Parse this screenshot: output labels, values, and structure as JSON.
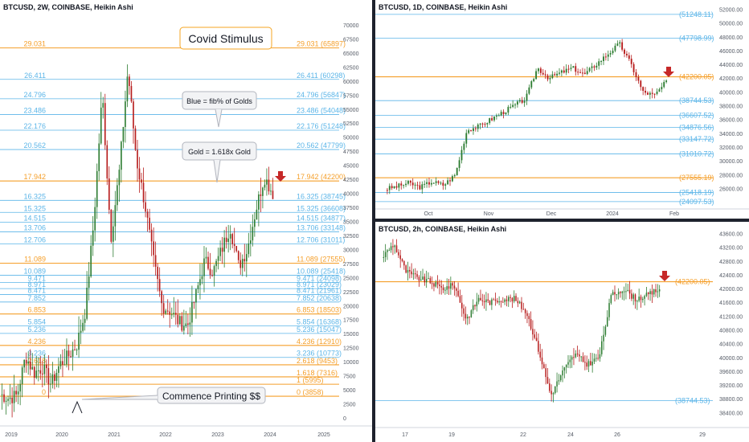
{
  "colors": {
    "gold": "#f59f2a",
    "blue": "#5bb5e8",
    "up": "#2e7d32",
    "down": "#b71c1c",
    "axis_text": "#555b66",
    "arrow": "#c62828",
    "callout_border": "#f5a623"
  },
  "chart_data": [
    {
      "type": "candlestick",
      "title": "BTCUSD, 2W, COINBASE, Heikin Ashi",
      "x_ticks": [
        "2019",
        "2020",
        "2021",
        "2022",
        "2023",
        "2024",
        "2025"
      ],
      "y_ticks": [
        "70000",
        "67500",
        "65000",
        "62500",
        "60000",
        "57500",
        "55000",
        "52500",
        "50000",
        "47500",
        "45000",
        "42500",
        "40000",
        "37500",
        "35000",
        "32500",
        "30000",
        "27500",
        "25000",
        "22500",
        "20000",
        "17500",
        "15000",
        "12500",
        "10000",
        "7500",
        "5000",
        "2500",
        "0"
      ],
      "ylim": [
        0,
        72000
      ],
      "levels": [
        {
          "left": "29.031",
          "right": "29.031 (65897)",
          "value": 65897,
          "color": "gold"
        },
        {
          "left": "26.411",
          "right": "26.411 (60298)",
          "value": 60298,
          "color": "blue"
        },
        {
          "left": "24.796",
          "right": "24.796 (56847)",
          "value": 56847,
          "color": "blue"
        },
        {
          "left": "23.486",
          "right": "23.486 (54048)",
          "value": 54048,
          "color": "blue"
        },
        {
          "left": "22.176",
          "right": "22.176 (51248)",
          "value": 51248,
          "color": "blue"
        },
        {
          "left": "20.562",
          "right": "20.562 (47799)",
          "value": 47799,
          "color": "blue"
        },
        {
          "left": "17.942",
          "right": "17.942 (42200)",
          "value": 42200,
          "color": "gold"
        },
        {
          "left": "16.325",
          "right": "16.325 (38745)",
          "value": 38745,
          "color": "blue"
        },
        {
          "left": "15.325",
          "right": "15.325 (36608)",
          "value": 36608,
          "color": "blue"
        },
        {
          "left": "14.515",
          "right": "14.515 (34877)",
          "value": 34877,
          "color": "blue"
        },
        {
          "left": "13.706",
          "right": "13.706 (33148)",
          "value": 33148,
          "color": "blue"
        },
        {
          "left": "12.706",
          "right": "12.706 (31011)",
          "value": 31011,
          "color": "blue"
        },
        {
          "left": "11.089",
          "right": "11.089 (27555)",
          "value": 27555,
          "color": "gold"
        },
        {
          "left": "10.089",
          "right": "10.089 (25418)",
          "value": 25418,
          "color": "blue"
        },
        {
          "left": "9.471",
          "right": "9.471 (24098)",
          "value": 24098,
          "color": "blue"
        },
        {
          "left": "8.971",
          "right": "8.971 (23029)",
          "value": 23029,
          "color": "blue"
        },
        {
          "left": "8.471",
          "right": "8.471 (21961)",
          "value": 21961,
          "color": "blue"
        },
        {
          "left": "7.852",
          "right": "7.852 (20638)",
          "value": 20638,
          "color": "blue"
        },
        {
          "left": "6.853",
          "right": "6.853 (18503)",
          "value": 18503,
          "color": "gold"
        },
        {
          "left": "5.854",
          "right": "5.854 (16368)",
          "value": 16368,
          "color": "blue"
        },
        {
          "left": "5.236",
          "right": "5.236 (15047)",
          "value": 15047,
          "color": "blue"
        },
        {
          "left": "4.236",
          "right": "4.236 (12910)",
          "value": 12910,
          "color": "gold"
        },
        {
          "left": "3.236",
          "right": "3.236 (10773)",
          "value": 10773,
          "color": "blue"
        },
        {
          "left": "2.618",
          "right": "2.618 (9453)",
          "value": 9453,
          "color": "gold"
        },
        {
          "left": "",
          "right": "1.618 (7316)",
          "value": 7316,
          "color": "gold"
        },
        {
          "left": "",
          "right": "1 (5995)",
          "value": 5995,
          "color": "gold"
        },
        {
          "left": "0",
          "right": "0 (3858)",
          "value": 3858,
          "color": "gold"
        }
      ],
      "annotations": {
        "covid": "Covid Stimulus",
        "blue_note": "Blue = fib% of Golds",
        "gold_note": "Gold = 1.618x Gold",
        "printing": "Commence Printing $$"
      }
    },
    {
      "type": "candlestick",
      "title": "BTCUSD, 1D, COINBASE, Heikin Ashi",
      "x_ticks": [
        "Oct",
        "Nov",
        "Dec",
        "2024",
        "Feb"
      ],
      "y_ticks": [
        "52000.00",
        "50000.00",
        "48000.00",
        "46000.00",
        "44000.00",
        "42000.00",
        "40000.00",
        "38000.00",
        "36000.00",
        "34000.00",
        "32000.00",
        "30000.00",
        "28000.00",
        "26000.00"
      ],
      "ylim": [
        23500,
        52400
      ],
      "levels": [
        {
          "label": "(51248.11)",
          "value": 51248.11,
          "color": "blue"
        },
        {
          "label": "(47798.99)",
          "value": 47798.99,
          "color": "blue"
        },
        {
          "label": "(42200.05)",
          "value": 42200.05,
          "color": "gold"
        },
        {
          "label": "(38744.53)",
          "value": 38744.53,
          "color": "blue"
        },
        {
          "label": "(36607.52)",
          "value": 36607.52,
          "color": "blue"
        },
        {
          "label": "(34876.56)",
          "value": 34876.56,
          "color": "blue"
        },
        {
          "label": "(33147.72)",
          "value": 33147.72,
          "color": "blue"
        },
        {
          "label": "(31010.72)",
          "value": 31010.72,
          "color": "blue"
        },
        {
          "label": "(27555.19)",
          "value": 27555.19,
          "color": "gold"
        },
        {
          "label": "(25418.19)",
          "value": 25418.19,
          "color": "blue"
        },
        {
          "label": "(24097.53)",
          "value": 24097.53,
          "color": "blue"
        }
      ]
    },
    {
      "type": "candlestick",
      "title": "BTCUSD, 2h, COINBASE, Heikin Ashi",
      "x_ticks": [
        "17",
        "19",
        "22",
        "24",
        "26",
        "29"
      ],
      "y_ticks": [
        "43600.00",
        "43200.00",
        "42800.00",
        "42400.00",
        "42000.00",
        "41600.00",
        "41200.00",
        "40800.00",
        "40400.00",
        "40000.00",
        "39600.00",
        "39200.00",
        "38800.00",
        "38400.00"
      ],
      "ylim": [
        38150,
        43800
      ],
      "levels": [
        {
          "label": "(42200.05)",
          "value": 42200.05,
          "color": "gold"
        },
        {
          "label": "(38744.53)",
          "value": 38744.53,
          "color": "blue"
        }
      ]
    }
  ]
}
